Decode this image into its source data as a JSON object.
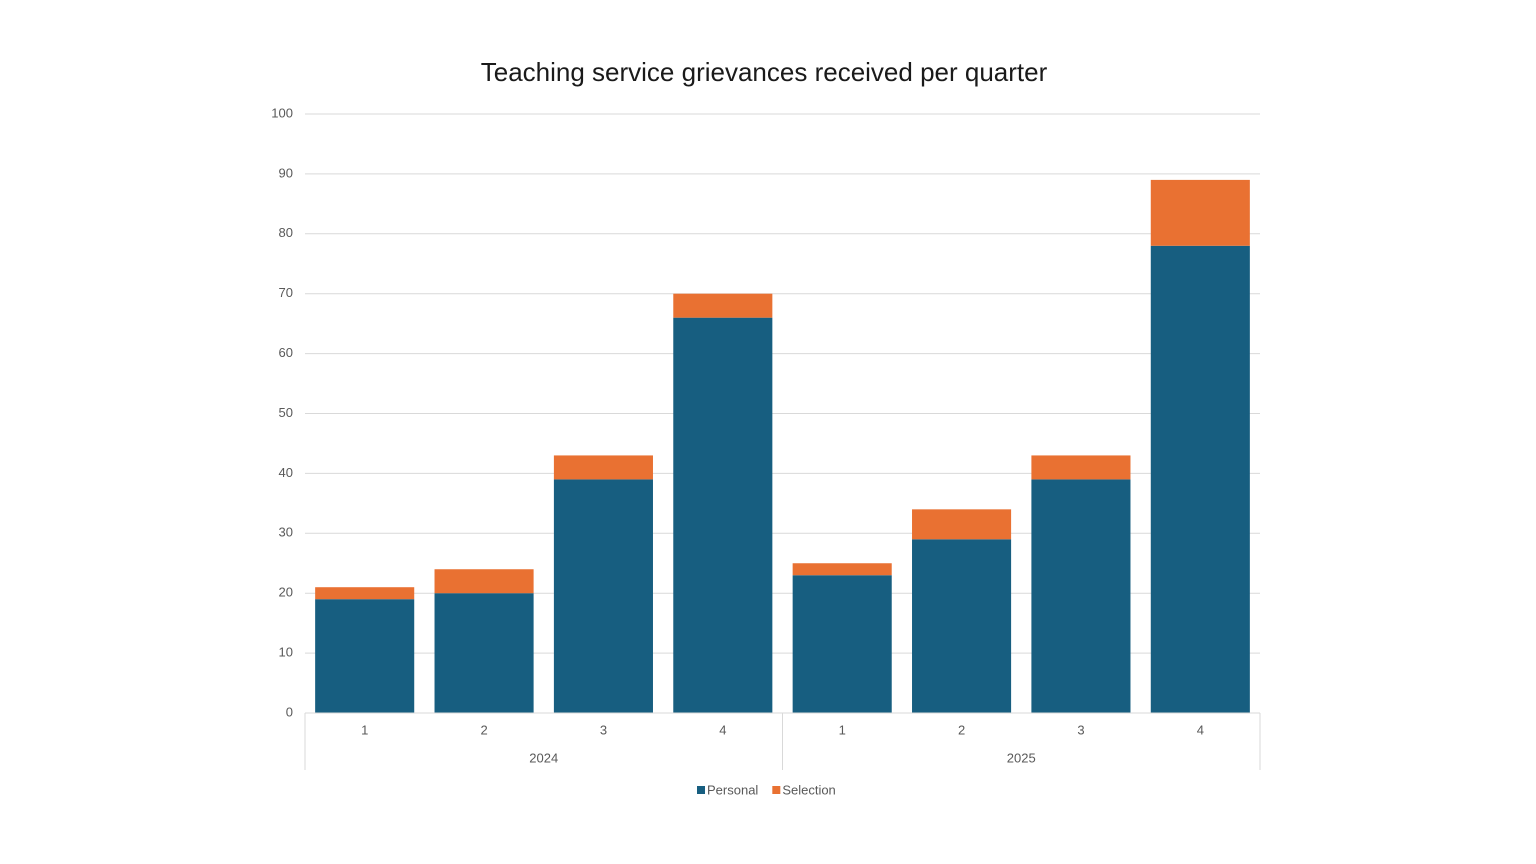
{
  "chart_data": {
    "type": "stacked-bar",
    "title": "Teaching service grievances received per quarter",
    "categories": [
      "1",
      "2",
      "3",
      "4",
      "1",
      "2",
      "3",
      "4"
    ],
    "groups": [
      "2024",
      "2025"
    ],
    "series": [
      {
        "name": "Personal",
        "color": "#175e80",
        "values": [
          19,
          20,
          39,
          66,
          23,
          29,
          39,
          78
        ]
      },
      {
        "name": "Selection",
        "color": "#e97132",
        "values": [
          2,
          4,
          4,
          4,
          2,
          5,
          4,
          11
        ]
      }
    ],
    "ylim": [
      0,
      100
    ],
    "yticks": [
      0,
      10,
      20,
      30,
      40,
      50,
      60,
      70,
      80,
      90,
      100
    ],
    "grid": true,
    "legend": "bottom"
  }
}
